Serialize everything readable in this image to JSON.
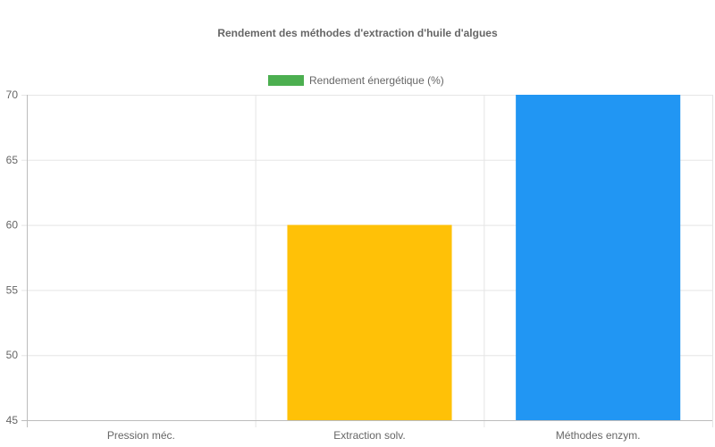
{
  "chart_data": {
    "type": "bar",
    "title": "Rendement des méthodes d'extraction d'huile d'algues",
    "categories": [
      "Pression méc.",
      "Extraction solv.",
      "Méthodes enzym."
    ],
    "series": [
      {
        "name": "Rendement énergétique (%)",
        "values": [
          45,
          60,
          70
        ],
        "colors": [
          "#4caf50",
          "#ffc107",
          "#2196f3"
        ]
      }
    ],
    "legend_color": "#4caf50",
    "legend_position": "top",
    "ylim": [
      45,
      70
    ],
    "yticks": [
      45,
      50,
      55,
      60,
      65,
      70
    ],
    "grid": true,
    "xlabel": "",
    "ylabel": ""
  }
}
